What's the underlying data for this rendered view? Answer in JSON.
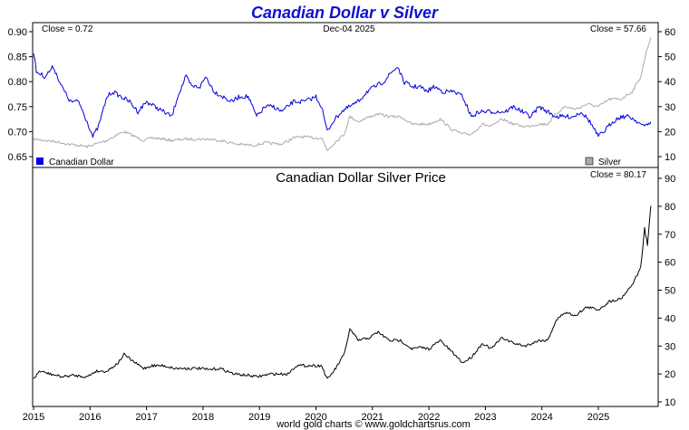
{
  "header": {
    "title": "Canadian Dollar v Silver",
    "date": "Dec-04  2025",
    "footer": "world gold charts © www.goldchartsrus.com"
  },
  "chart_data": [
    {
      "type": "line",
      "title": "Canadian Dollar v Silver",
      "x": [
        "2015",
        "2016",
        "2017",
        "2018",
        "2019",
        "2020",
        "2021",
        "2022",
        "2023",
        "2024",
        "2025"
      ],
      "left_axis": {
        "ylim": [
          0.65,
          0.9
        ],
        "ticks": [
          "0.90",
          "0.85",
          "0.80",
          "0.75",
          "0.70",
          "0.65"
        ]
      },
      "right_axis": {
        "ylim": [
          10,
          60
        ],
        "ticks": [
          "60",
          "50",
          "40",
          "30",
          "20",
          "10"
        ]
      },
      "close_left": "Close = 0.72",
      "close_right": "Close = 57.66",
      "legend": [
        {
          "name": "Canadian Dollar",
          "color": "#0000e0"
        },
        {
          "name": "Silver",
          "color": "#aaaaaa"
        }
      ],
      "series": [
        {
          "name": "Canadian Dollar",
          "axis": "left",
          "color": "#0000e0",
          "points": [
            [
              2015.0,
              0.86
            ],
            [
              2015.05,
              0.82
            ],
            [
              2015.2,
              0.81
            ],
            [
              2015.35,
              0.83
            ],
            [
              2015.5,
              0.79
            ],
            [
              2015.65,
              0.76
            ],
            [
              2015.8,
              0.76
            ],
            [
              2015.95,
              0.72
            ],
            [
              2016.05,
              0.69
            ],
            [
              2016.15,
              0.71
            ],
            [
              2016.3,
              0.77
            ],
            [
              2016.4,
              0.78
            ],
            [
              2016.55,
              0.77
            ],
            [
              2016.7,
              0.76
            ],
            [
              2016.85,
              0.74
            ],
            [
              2017.0,
              0.76
            ],
            [
              2017.15,
              0.75
            ],
            [
              2017.3,
              0.74
            ],
            [
              2017.45,
              0.73
            ],
            [
              2017.55,
              0.77
            ],
            [
              2017.7,
              0.81
            ],
            [
              2017.8,
              0.79
            ],
            [
              2017.95,
              0.79
            ],
            [
              2018.05,
              0.81
            ],
            [
              2018.2,
              0.78
            ],
            [
              2018.35,
              0.77
            ],
            [
              2018.5,
              0.76
            ],
            [
              2018.65,
              0.77
            ],
            [
              2018.8,
              0.77
            ],
            [
              2018.95,
              0.73
            ],
            [
              2019.1,
              0.75
            ],
            [
              2019.25,
              0.75
            ],
            [
              2019.4,
              0.74
            ],
            [
              2019.6,
              0.76
            ],
            [
              2019.8,
              0.76
            ],
            [
              2020.0,
              0.77
            ],
            [
              2020.1,
              0.75
            ],
            [
              2020.2,
              0.7
            ],
            [
              2020.3,
              0.72
            ],
            [
              2020.45,
              0.74
            ],
            [
              2020.6,
              0.75
            ],
            [
              2020.75,
              0.76
            ],
            [
              2020.9,
              0.78
            ],
            [
              2021.05,
              0.79
            ],
            [
              2021.2,
              0.8
            ],
            [
              2021.35,
              0.82
            ],
            [
              2021.45,
              0.83
            ],
            [
              2021.55,
              0.8
            ],
            [
              2021.7,
              0.79
            ],
            [
              2021.85,
              0.79
            ],
            [
              2021.95,
              0.78
            ],
            [
              2022.1,
              0.79
            ],
            [
              2022.25,
              0.78
            ],
            [
              2022.45,
              0.78
            ],
            [
              2022.6,
              0.77
            ],
            [
              2022.75,
              0.73
            ],
            [
              2022.9,
              0.74
            ],
            [
              2023.05,
              0.74
            ],
            [
              2023.2,
              0.74
            ],
            [
              2023.35,
              0.74
            ],
            [
              2023.5,
              0.75
            ],
            [
              2023.65,
              0.74
            ],
            [
              2023.8,
              0.73
            ],
            [
              2023.95,
              0.75
            ],
            [
              2024.1,
              0.74
            ],
            [
              2024.25,
              0.73
            ],
            [
              2024.4,
              0.73
            ],
            [
              2024.55,
              0.73
            ],
            [
              2024.7,
              0.74
            ],
            [
              2024.85,
              0.72
            ],
            [
              2025.0,
              0.69
            ],
            [
              2025.1,
              0.7
            ],
            [
              2025.25,
              0.72
            ],
            [
              2025.4,
              0.73
            ],
            [
              2025.55,
              0.73
            ],
            [
              2025.7,
              0.72
            ],
            [
              2025.8,
              0.71
            ],
            [
              2025.93,
              0.72
            ]
          ]
        },
        {
          "name": "Silver",
          "axis": "right",
          "color": "#aaaaaa",
          "points": [
            [
              2015.0,
              17
            ],
            [
              2015.2,
              16.5
            ],
            [
              2015.4,
              16
            ],
            [
              2015.6,
              15
            ],
            [
              2015.8,
              14.5
            ],
            [
              2015.95,
              14
            ],
            [
              2016.1,
              15
            ],
            [
              2016.3,
              16.5
            ],
            [
              2016.5,
              19
            ],
            [
              2016.6,
              20
            ],
            [
              2016.8,
              18
            ],
            [
              2016.95,
              16.5
            ],
            [
              2017.1,
              17.5
            ],
            [
              2017.3,
              17
            ],
            [
              2017.45,
              16.5
            ],
            [
              2017.7,
              17
            ],
            [
              2017.95,
              17
            ],
            [
              2018.1,
              17
            ],
            [
              2018.3,
              16.5
            ],
            [
              2018.6,
              15
            ],
            [
              2018.9,
              14.5
            ],
            [
              2019.1,
              15.5
            ],
            [
              2019.4,
              15
            ],
            [
              2019.6,
              17.5
            ],
            [
              2019.75,
              18
            ],
            [
              2019.95,
              17.5
            ],
            [
              2020.1,
              17.5
            ],
            [
              2020.2,
              12.5
            ],
            [
              2020.35,
              16
            ],
            [
              2020.5,
              19
            ],
            [
              2020.6,
              26
            ],
            [
              2020.75,
              24
            ],
            [
              2020.95,
              26
            ],
            [
              2021.1,
              27
            ],
            [
              2021.3,
              26
            ],
            [
              2021.5,
              26
            ],
            [
              2021.7,
              23
            ],
            [
              2021.85,
              23
            ],
            [
              2022.0,
              23
            ],
            [
              2022.2,
              25
            ],
            [
              2022.4,
              21
            ],
            [
              2022.6,
              19
            ],
            [
              2022.75,
              19
            ],
            [
              2022.95,
              23
            ],
            [
              2023.1,
              22
            ],
            [
              2023.3,
              25
            ],
            [
              2023.5,
              23
            ],
            [
              2023.7,
              22
            ],
            [
              2023.95,
              23
            ],
            [
              2024.1,
              23
            ],
            [
              2024.25,
              27
            ],
            [
              2024.4,
              30
            ],
            [
              2024.6,
              29
            ],
            [
              2024.8,
              31
            ],
            [
              2025.0,
              30
            ],
            [
              2025.2,
              33
            ],
            [
              2025.4,
              33
            ],
            [
              2025.6,
              36
            ],
            [
              2025.75,
              42
            ],
            [
              2025.85,
              52
            ],
            [
              2025.93,
              57.66
            ]
          ]
        }
      ]
    },
    {
      "type": "line",
      "title": "Canadian Dollar Silver Price",
      "x": [
        "2015",
        "2016",
        "2017",
        "2018",
        "2019",
        "2020",
        "2021",
        "2022",
        "2023",
        "2024",
        "2025"
      ],
      "ylim": [
        10,
        90
      ],
      "ticks": [
        "90",
        "80",
        "70",
        "60",
        "50",
        "40",
        "30",
        "20",
        "10"
      ],
      "close": "Close = 80.17",
      "series": [
        {
          "name": "Canadian Dollar Silver Price",
          "color": "#000000",
          "points": [
            [
              2015.0,
              18
            ],
            [
              2015.1,
              21
            ],
            [
              2015.3,
              20
            ],
            [
              2015.5,
              19
            ],
            [
              2015.7,
              19.5
            ],
            [
              2015.95,
              19
            ],
            [
              2016.1,
              21
            ],
            [
              2016.3,
              21
            ],
            [
              2016.5,
              24
            ],
            [
              2016.6,
              27
            ],
            [
              2016.8,
              24
            ],
            [
              2016.95,
              22
            ],
            [
              2017.1,
              23
            ],
            [
              2017.3,
              23
            ],
            [
              2017.5,
              22
            ],
            [
              2017.7,
              22
            ],
            [
              2017.95,
              22
            ],
            [
              2018.1,
              21.5
            ],
            [
              2018.3,
              22
            ],
            [
              2018.55,
              20
            ],
            [
              2018.8,
              19.5
            ],
            [
              2018.95,
              19
            ],
            [
              2019.2,
              20
            ],
            [
              2019.5,
              20
            ],
            [
              2019.65,
              23
            ],
            [
              2019.8,
              23
            ],
            [
              2019.95,
              23
            ],
            [
              2020.1,
              23
            ],
            [
              2020.2,
              18
            ],
            [
              2020.35,
              22
            ],
            [
              2020.5,
              27
            ],
            [
              2020.6,
              36
            ],
            [
              2020.75,
              32
            ],
            [
              2020.95,
              33
            ],
            [
              2021.1,
              35
            ],
            [
              2021.3,
              32
            ],
            [
              2021.5,
              32
            ],
            [
              2021.7,
              29
            ],
            [
              2021.85,
              29.5
            ],
            [
              2022.0,
              29
            ],
            [
              2022.2,
              32
            ],
            [
              2022.4,
              28
            ],
            [
              2022.6,
              24
            ],
            [
              2022.75,
              26
            ],
            [
              2022.95,
              31
            ],
            [
              2023.1,
              29
            ],
            [
              2023.3,
              33
            ],
            [
              2023.5,
              31
            ],
            [
              2023.7,
              30
            ],
            [
              2023.95,
              32
            ],
            [
              2024.1,
              32
            ],
            [
              2024.25,
              39
            ],
            [
              2024.4,
              42
            ],
            [
              2024.6,
              41
            ],
            [
              2024.8,
              44
            ],
            [
              2025.0,
              43
            ],
            [
              2025.2,
              46
            ],
            [
              2025.4,
              47
            ],
            [
              2025.6,
              52
            ],
            [
              2025.75,
              58
            ],
            [
              2025.82,
              72
            ],
            [
              2025.87,
              66
            ],
            [
              2025.93,
              80.17
            ]
          ]
        }
      ]
    }
  ]
}
